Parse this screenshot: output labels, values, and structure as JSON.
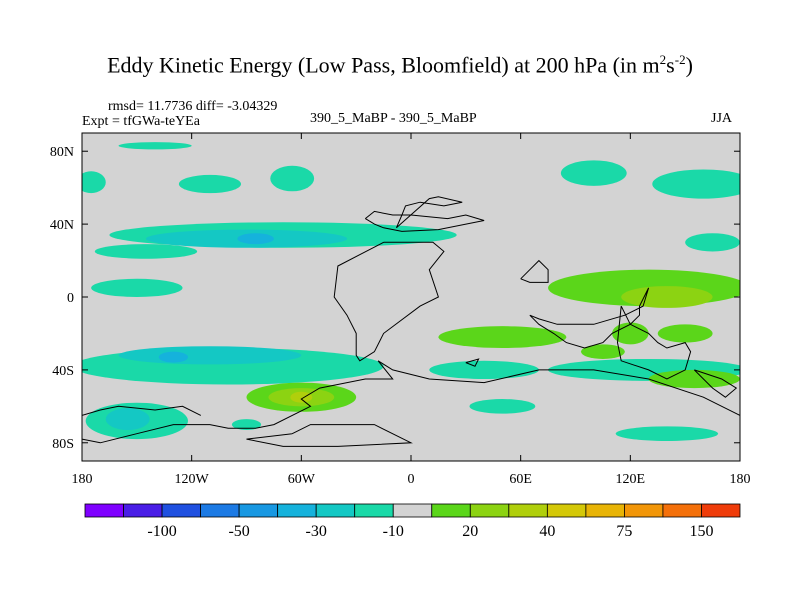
{
  "header": {
    "title_main": "Eddy Kinetic Energy (Low Pass, Bloomfield) at 200 hPa (in m",
    "title_sup1": "2",
    "title_s": "s",
    "title_sup2": "-2",
    "title_close": ")",
    "rmsd_line": "rmsd= 11.7736 diff= -3.04329",
    "expt_line": "Expt = tfGWa-teYEa",
    "case_line": "390_5_MaBP - 390_5_MaBP",
    "season": "JJA"
  },
  "chart_data": {
    "type": "heatmap",
    "title": "Eddy Kinetic Energy (Low Pass, Bloomfield) at 200 hPa (in m2s-2)",
    "projection": "cylindrical equidistant",
    "xlim": [
      -180,
      180
    ],
    "ylim": [
      -90,
      90
    ],
    "x_ticks": [
      {
        "value": -180,
        "label": "180"
      },
      {
        "value": -120,
        "label": "120W"
      },
      {
        "value": -60,
        "label": "60W"
      },
      {
        "value": 0,
        "label": "0"
      },
      {
        "value": 60,
        "label": "60E"
      },
      {
        "value": 120,
        "label": "120E"
      },
      {
        "value": 180,
        "label": "180"
      }
    ],
    "y_ticks": [
      {
        "value": 80,
        "label": "80N"
      },
      {
        "value": 40,
        "label": "40N"
      },
      {
        "value": 0,
        "label": "0"
      },
      {
        "value": -40,
        "label": "40S"
      },
      {
        "value": -80,
        "label": "80S"
      }
    ],
    "background_level": "-10 to 10",
    "colorbar": {
      "colors": [
        "#7f00ff",
        "#4a1ee6",
        "#1f50e0",
        "#1c7ae4",
        "#1898e2",
        "#15b2dc",
        "#14c8c4",
        "#1ad9a8",
        "#d3d3d3",
        "#5bd61a",
        "#8cd312",
        "#b0cf0c",
        "#d4c808",
        "#e8b406",
        "#f29608",
        "#f4700a",
        "#ef3c0a"
      ],
      "labels": [
        {
          "after_box": 2,
          "text": "-100"
        },
        {
          "after_box": 4,
          "text": "-50"
        },
        {
          "after_box": 6,
          "text": "-30"
        },
        {
          "after_box": 8,
          "text": "-10"
        },
        {
          "after_box": 10,
          "text": "20"
        },
        {
          "after_box": 12,
          "text": "40"
        },
        {
          "after_box": 14,
          "text": "75"
        },
        {
          "after_box": 16,
          "text": "150"
        }
      ]
    },
    "regions": [
      {
        "lon": -140,
        "lat": 83,
        "rx": 20,
        "ry": 2,
        "level": "-15",
        "color": "#1ad9a8"
      },
      {
        "lon": -175,
        "lat": 63,
        "rx": 8,
        "ry": 6,
        "level": "-15",
        "color": "#1ad9a8"
      },
      {
        "lon": -110,
        "lat": 62,
        "rx": 17,
        "ry": 5,
        "level": "-15",
        "color": "#1ad9a8"
      },
      {
        "lon": -65,
        "lat": 65,
        "rx": 12,
        "ry": 7,
        "level": "-15",
        "color": "#1ad9a8"
      },
      {
        "lon": 100,
        "lat": 68,
        "rx": 18,
        "ry": 7,
        "level": "-15",
        "color": "#1ad9a8"
      },
      {
        "lon": 160,
        "lat": 62,
        "rx": 28,
        "ry": 8,
        "level": "-15",
        "color": "#1ad9a8"
      },
      {
        "lon": -70,
        "lat": 34,
        "rx": 95,
        "ry": 7,
        "level": "-15",
        "color": "#1ad9a8"
      },
      {
        "lon": -90,
        "lat": 32,
        "rx": 55,
        "ry": 5,
        "level": "-25",
        "color": "#14c8c4"
      },
      {
        "lon": -85,
        "lat": 32,
        "rx": 10,
        "ry": 3,
        "level": "-35",
        "color": "#15b2dc"
      },
      {
        "lon": -145,
        "lat": 25,
        "rx": 28,
        "ry": 4,
        "level": "-15",
        "color": "#1ad9a8"
      },
      {
        "lon": -150,
        "lat": 5,
        "rx": 25,
        "ry": 5,
        "level": "-15",
        "color": "#1ad9a8"
      },
      {
        "lon": 165,
        "lat": 30,
        "rx": 15,
        "ry": 5,
        "level": "-15",
        "color": "#1ad9a8"
      },
      {
        "lon": 130,
        "lat": 5,
        "rx": 55,
        "ry": 10,
        "level": "15",
        "color": "#5bd61a"
      },
      {
        "lon": 140,
        "lat": 0,
        "rx": 25,
        "ry": 6,
        "level": "30",
        "color": "#8cd312"
      },
      {
        "lon": 120,
        "lat": -20,
        "rx": 10,
        "ry": 6,
        "level": "15",
        "color": "#5bd61a"
      },
      {
        "lon": 50,
        "lat": -22,
        "rx": 35,
        "ry": 6,
        "level": "15",
        "color": "#5bd61a"
      },
      {
        "lon": 150,
        "lat": -20,
        "rx": 15,
        "ry": 5,
        "level": "15",
        "color": "#5bd61a"
      },
      {
        "lon": -100,
        "lat": -38,
        "rx": 85,
        "ry": 10,
        "level": "-15",
        "color": "#1ad9a8"
      },
      {
        "lon": -110,
        "lat": -32,
        "rx": 50,
        "ry": 5,
        "level": "-25",
        "color": "#14c8c4"
      },
      {
        "lon": -130,
        "lat": -33,
        "rx": 8,
        "ry": 3,
        "level": "-35",
        "color": "#15b2dc"
      },
      {
        "lon": 40,
        "lat": -40,
        "rx": 30,
        "ry": 5,
        "level": "-15",
        "color": "#1ad9a8"
      },
      {
        "lon": 130,
        "lat": -40,
        "rx": 55,
        "ry": 6,
        "level": "-15",
        "color": "#1ad9a8"
      },
      {
        "lon": 155,
        "lat": -45,
        "rx": 25,
        "ry": 5,
        "level": "15",
        "color": "#5bd61a"
      },
      {
        "lon": 105,
        "lat": -30,
        "rx": 12,
        "ry": 4,
        "level": "15",
        "color": "#5bd61a"
      },
      {
        "lon": -60,
        "lat": -55,
        "rx": 30,
        "ry": 8,
        "level": "15",
        "color": "#5bd61a"
      },
      {
        "lon": -60,
        "lat": -55,
        "rx": 18,
        "ry": 5,
        "level": "30",
        "color": "#8cd312"
      },
      {
        "lon": -60,
        "lat": -55,
        "rx": 6,
        "ry": 3,
        "level": "50",
        "color": "#b0cf0c"
      },
      {
        "lon": -150,
        "lat": -68,
        "rx": 28,
        "ry": 10,
        "level": "-15",
        "color": "#1ad9a8"
      },
      {
        "lon": -155,
        "lat": -67,
        "rx": 12,
        "ry": 6,
        "level": "-25",
        "color": "#14c8c4"
      },
      {
        "lon": 50,
        "lat": -60,
        "rx": 18,
        "ry": 4,
        "level": "-15",
        "color": "#1ad9a8"
      },
      {
        "lon": 140,
        "lat": -75,
        "rx": 28,
        "ry": 4,
        "level": "-15",
        "color": "#1ad9a8"
      },
      {
        "lon": -90,
        "lat": -70,
        "rx": 8,
        "ry": 3,
        "level": "-15",
        "color": "#1ad9a8"
      }
    ],
    "coastline_paths": [
      [
        [
          -25,
          43
        ],
        [
          -20,
          47
        ],
        [
          -10,
          45
        ],
        [
          0,
          45
        ],
        [
          20,
          43
        ],
        [
          30,
          45
        ],
        [
          40,
          42
        ],
        [
          15,
          37
        ],
        [
          -5,
          36
        ],
        [
          -15,
          38
        ],
        [
          -20,
          40
        ],
        [
          -25,
          43
        ]
      ],
      [
        [
          -15,
          30
        ],
        [
          -40,
          17
        ],
        [
          -42,
          0
        ],
        [
          -35,
          -10
        ],
        [
          -30,
          -20
        ],
        [
          -30,
          -32
        ],
        [
          -28,
          -35
        ],
        [
          -20,
          -30
        ],
        [
          -15,
          -20
        ],
        [
          5,
          -5
        ],
        [
          15,
          0
        ],
        [
          10,
          15
        ],
        [
          18,
          25
        ],
        [
          12,
          30
        ],
        [
          -15,
          30
        ]
      ],
      [
        [
          -18,
          -35
        ],
        [
          -10,
          -45
        ],
        [
          -25,
          -45
        ],
        [
          -50,
          -50
        ],
        [
          -60,
          -56
        ],
        [
          -55,
          -60
        ],
        [
          -75,
          -70
        ],
        [
          -85,
          -72
        ],
        [
          -100,
          -72
        ],
        [
          -110,
          -70
        ],
        [
          -130,
          -70
        ],
        [
          -150,
          -75
        ],
        [
          -170,
          -80
        ],
        [
          -180,
          -78
        ]
      ],
      [
        [
          180,
          -65
        ],
        [
          160,
          -55
        ],
        [
          130,
          -45
        ],
        [
          100,
          -40
        ],
        [
          70,
          -40
        ],
        [
          40,
          -47
        ],
        [
          10,
          -45
        ],
        [
          -10,
          -40
        ],
        [
          -18,
          -35
        ]
      ],
      [
        [
          -180,
          -65
        ],
        [
          -170,
          -62
        ],
        [
          -160,
          -60
        ],
        [
          -140,
          -62
        ],
        [
          -125,
          -60
        ],
        [
          -115,
          -65
        ]
      ],
      [
        [
          -65,
          -75
        ],
        [
          -55,
          -70
        ],
        [
          -20,
          -70
        ],
        [
          0,
          -80
        ],
        [
          -40,
          -82
        ],
        [
          -70,
          -82
        ],
        [
          -90,
          -78
        ],
        [
          -65,
          -75
        ]
      ],
      [
        [
          65,
          -10
        ],
        [
          70,
          -15
        ],
        [
          78,
          -20
        ],
        [
          85,
          -25
        ],
        [
          95,
          -28
        ],
        [
          105,
          -25
        ],
        [
          110,
          -20
        ],
        [
          120,
          -15
        ],
        [
          125,
          -10
        ],
        [
          125,
          -5
        ],
        [
          130,
          5
        ],
        [
          127,
          -5
        ],
        [
          117,
          -10
        ],
        [
          100,
          -15
        ],
        [
          80,
          -15
        ],
        [
          70,
          -12
        ],
        [
          65,
          -10
        ]
      ],
      [
        [
          115,
          -5
        ],
        [
          120,
          -15
        ],
        [
          130,
          -20
        ],
        [
          135,
          -25
        ],
        [
          140,
          -28
        ],
        [
          150,
          -25
        ],
        [
          153,
          -30
        ],
        [
          150,
          -40
        ],
        [
          140,
          -45
        ],
        [
          130,
          -40
        ],
        [
          115,
          -35
        ],
        [
          113,
          -25
        ],
        [
          115,
          -5
        ]
      ],
      [
        [
          155,
          -40
        ],
        [
          170,
          -45
        ],
        [
          178,
          -50
        ],
        [
          172,
          -55
        ],
        [
          165,
          -50
        ],
        [
          155,
          -40
        ]
      ],
      [
        [
          30,
          -36
        ],
        [
          35,
          -38
        ],
        [
          37,
          -34
        ],
        [
          30,
          -36
        ]
      ],
      [
        [
          60,
          10
        ],
        [
          65,
          15
        ],
        [
          70,
          20
        ],
        [
          75,
          15
        ],
        [
          75,
          8
        ],
        [
          65,
          8
        ],
        [
          60,
          10
        ]
      ],
      [
        [
          -8,
          38
        ],
        [
          -5,
          45
        ],
        [
          -3,
          50
        ],
        [
          5,
          52
        ],
        [
          18,
          50
        ],
        [
          28,
          52
        ],
        [
          15,
          55
        ],
        [
          10,
          54
        ],
        [
          -8,
          38
        ]
      ]
    ]
  }
}
